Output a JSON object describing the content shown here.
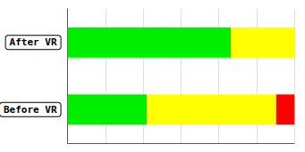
{
  "chart_data": {
    "type": "bar",
    "orientation": "horizontal",
    "stacked": true,
    "categories": [
      "After VR",
      "Before VR"
    ],
    "series": [
      {
        "color": "#00ee00",
        "values": [
          72,
          35
        ]
      },
      {
        "color": "#ffff00",
        "values": [
          28,
          57
        ]
      },
      {
        "color": "#ff0000",
        "values": [
          0,
          8
        ]
      }
    ],
    "xlim": [
      0,
      100
    ],
    "xticks": [
      0,
      16.67,
      33.33,
      50,
      66.67,
      83.33,
      100
    ],
    "grid": true,
    "tick_labels": "y"
  }
}
